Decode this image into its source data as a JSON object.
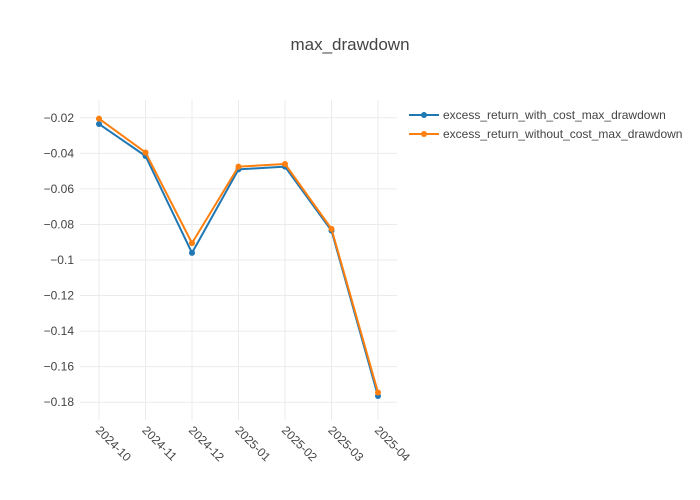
{
  "chart_data": {
    "type": "line",
    "title": "max_drawdown",
    "xlabel": "",
    "ylabel": "",
    "categories": [
      "2024-10",
      "2024-11",
      "2024-12",
      "2025-01",
      "2025-02",
      "2025-03",
      "2025-04"
    ],
    "ylim": [
      -0.19,
      -0.01
    ],
    "yticks": [
      -0.02,
      -0.04,
      -0.06,
      -0.08,
      -0.1,
      -0.12,
      -0.14,
      -0.16,
      -0.18
    ],
    "ytick_labels": [
      "−0.02",
      "−0.04",
      "−0.06",
      "−0.08",
      "−0.1",
      "−0.12",
      "−0.14",
      "−0.16",
      "−0.18"
    ],
    "grid": true,
    "legend_position": "top-right",
    "series": [
      {
        "name": "excess_return_with_cost_max_drawdown",
        "color": "#1f77b4",
        "values": [
          -0.0235,
          -0.0415,
          -0.096,
          -0.049,
          -0.0475,
          -0.0835,
          -0.1765
        ]
      },
      {
        "name": "excess_return_without_cost_max_drawdown",
        "color": "#ff7f0e",
        "values": [
          -0.0205,
          -0.0395,
          -0.0905,
          -0.0475,
          -0.046,
          -0.0825,
          -0.1745
        ]
      }
    ]
  }
}
